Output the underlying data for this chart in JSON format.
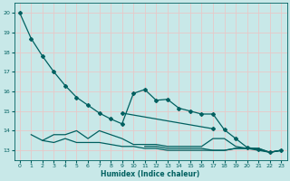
{
  "title": "",
  "xlabel": "Humidex (Indice chaleur)",
  "ylabel": "",
  "bg_color": "#c8e8e8",
  "grid_color": "#e8c8c8",
  "line_color": "#006060",
  "ylim": [
    12.5,
    20.5
  ],
  "xlim": [
    -0.5,
    23.5
  ],
  "yticks": [
    13,
    14,
    15,
    16,
    17,
    18,
    19,
    20
  ],
  "xticks": [
    0,
    1,
    2,
    3,
    4,
    5,
    6,
    7,
    8,
    9,
    10,
    11,
    12,
    13,
    14,
    15,
    16,
    17,
    18,
    19,
    20,
    21,
    22,
    23
  ],
  "series": [
    {
      "x": [
        0,
        1,
        2,
        3,
        4,
        5,
        6,
        7,
        8,
        9,
        10,
        11,
        12,
        13,
        14,
        15,
        16,
        17,
        18,
        19,
        20,
        21,
        22,
        23
      ],
      "y": [
        20.0,
        18.7,
        17.8,
        17.0,
        16.3,
        15.7,
        15.3,
        14.9,
        14.6,
        14.35,
        15.9,
        16.1,
        15.55,
        15.6,
        15.15,
        15.0,
        14.85,
        14.85,
        14.05,
        13.6,
        13.15,
        13.05,
        12.9,
        13.0
      ],
      "has_markers": true
    },
    {
      "x": [
        9,
        17
      ],
      "y": [
        14.9,
        14.1
      ],
      "has_markers": true
    },
    {
      "x": [
        1,
        2,
        3,
        4,
        5,
        6,
        7,
        8,
        9,
        10,
        11,
        12,
        13,
        14,
        15,
        16,
        17,
        18,
        19,
        20,
        21,
        22,
        23
      ],
      "y": [
        13.8,
        13.5,
        13.8,
        13.8,
        14.0,
        13.6,
        14.0,
        13.8,
        13.6,
        13.3,
        13.3,
        13.3,
        13.2,
        13.2,
        13.2,
        13.2,
        13.6,
        13.6,
        13.2,
        13.1,
        13.0,
        12.9,
        13.0
      ],
      "has_markers": false
    },
    {
      "x": [
        2,
        3,
        4,
        5,
        6,
        7,
        8,
        9,
        10,
        11,
        12,
        13,
        14,
        15,
        16,
        17,
        18,
        19,
        20,
        21,
        22,
        23
      ],
      "y": [
        13.5,
        13.4,
        13.6,
        13.4,
        13.4,
        13.4,
        13.3,
        13.2,
        13.2,
        13.1,
        13.1,
        13.0,
        13.0,
        13.0,
        13.0,
        13.0,
        13.0,
        13.1,
        13.1,
        13.1,
        12.9,
        13.0
      ],
      "has_markers": false
    },
    {
      "x": [
        11,
        12,
        13,
        14,
        15,
        16,
        17,
        18,
        19,
        20,
        21,
        22,
        23
      ],
      "y": [
        13.2,
        13.2,
        13.1,
        13.1,
        13.1,
        13.1,
        13.0,
        13.0,
        13.1,
        13.1,
        13.1,
        12.9,
        13.0
      ],
      "has_markers": false
    }
  ],
  "marker_size": 2.0,
  "linewidth": 0.9
}
